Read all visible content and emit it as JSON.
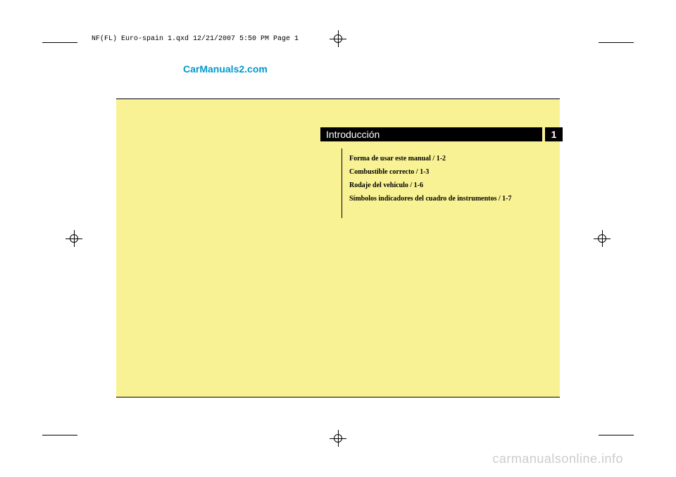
{
  "header": "NF(FL) Euro-spain 1.qxd  12/21/2007  5:50 PM  Page 1",
  "watermark_top": "CarManuals2.com",
  "watermark_bottom": "carmanualsonline.info",
  "chapter": {
    "title": "Introducción",
    "number": "1"
  },
  "toc": [
    "Forma de usar este manual / 1-2",
    "Combustible correcto / 1-3",
    "Rodaje del vehículo / 1-6",
    "Símbolos indicadores del cuadro de instrumentos / 1-7"
  ],
  "colors": {
    "page_bg": "#f8f294",
    "bar_bg": "#000000",
    "bar_text": "#ffffff",
    "watermark_color": "#0099cc",
    "bottom_watermark_color": "#cccccc"
  }
}
